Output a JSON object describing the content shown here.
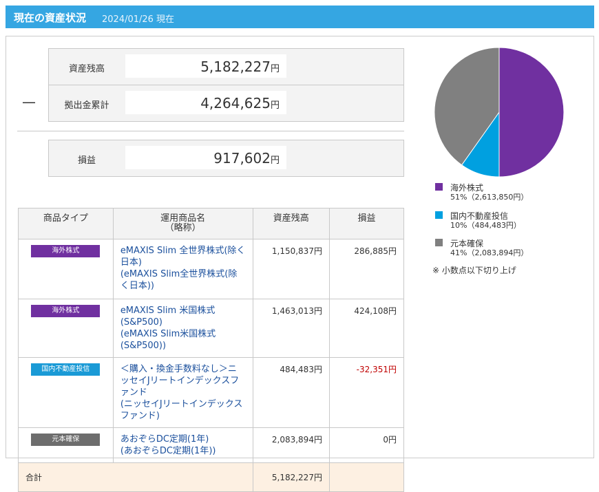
{
  "header": {
    "title": "現在の資産状況",
    "date": "2024/01/26 現在"
  },
  "unit": "円",
  "summary": {
    "minus": "—",
    "balance": {
      "label": "資産残高",
      "value": "5,182,227"
    },
    "contributions": {
      "label": "拠出金累計",
      "value": "4,264,625"
    },
    "profit": {
      "label": "損益",
      "value": "917,602"
    }
  },
  "table": {
    "columns": [
      [
        "商品タイプ"
      ],
      [
        "運用商品名",
        "（略称）"
      ],
      [
        "資産残高"
      ],
      [
        "損益"
      ]
    ],
    "rows": [
      {
        "type": "海外株式",
        "type_color": "#7030a0",
        "name": "eMAXIS Slim 全世界株式(除く日本)",
        "short": "(eMAXIS Slim全世界株式(除く日本))",
        "balance": "1,150,837円",
        "profit": "286,885円",
        "profit_color": "#333333"
      },
      {
        "type": "海外株式",
        "type_color": "#7030a0",
        "name": "eMAXIS Slim 米国株式(S&P500)",
        "short": "(eMAXIS Slim米国株式(S&P500))",
        "balance": "1,463,013円",
        "profit": "424,108円",
        "profit_color": "#333333"
      },
      {
        "type": "国内不動産投信",
        "type_color": "#1a9ad6",
        "name": "＜購入・換金手数料なし＞ニッセイJリートインデックスファンド",
        "short": "(ニッセイJリートインデックスファンド)",
        "balance": "484,483円",
        "profit": "-32,351円",
        "profit_color": "#c00000"
      },
      {
        "type": "元本確保",
        "type_color": "#6d6d6d",
        "name": "あおぞらDC定期(1年)",
        "short": "(あおぞらDC定期(1年))",
        "balance": "2,083,894円",
        "profit": "0円",
        "profit_color": "#333333"
      }
    ],
    "total": {
      "label": "合計",
      "balance": "5,182,227円"
    }
  },
  "allocation": {
    "type": "pie",
    "items": [
      {
        "name": "海外株式",
        "percent": 51,
        "label": "51%（2,613,850円）",
        "color": "#7030a0"
      },
      {
        "name": "国内不動産投信",
        "percent": 10,
        "label": "10%（484,483円）",
        "color": "#00a0e0"
      },
      {
        "name": "元本確保",
        "percent": 41,
        "label": "41%（2,083,894円）",
        "color": "#808080"
      }
    ],
    "note": "※ 小数点以下切り上げ"
  }
}
